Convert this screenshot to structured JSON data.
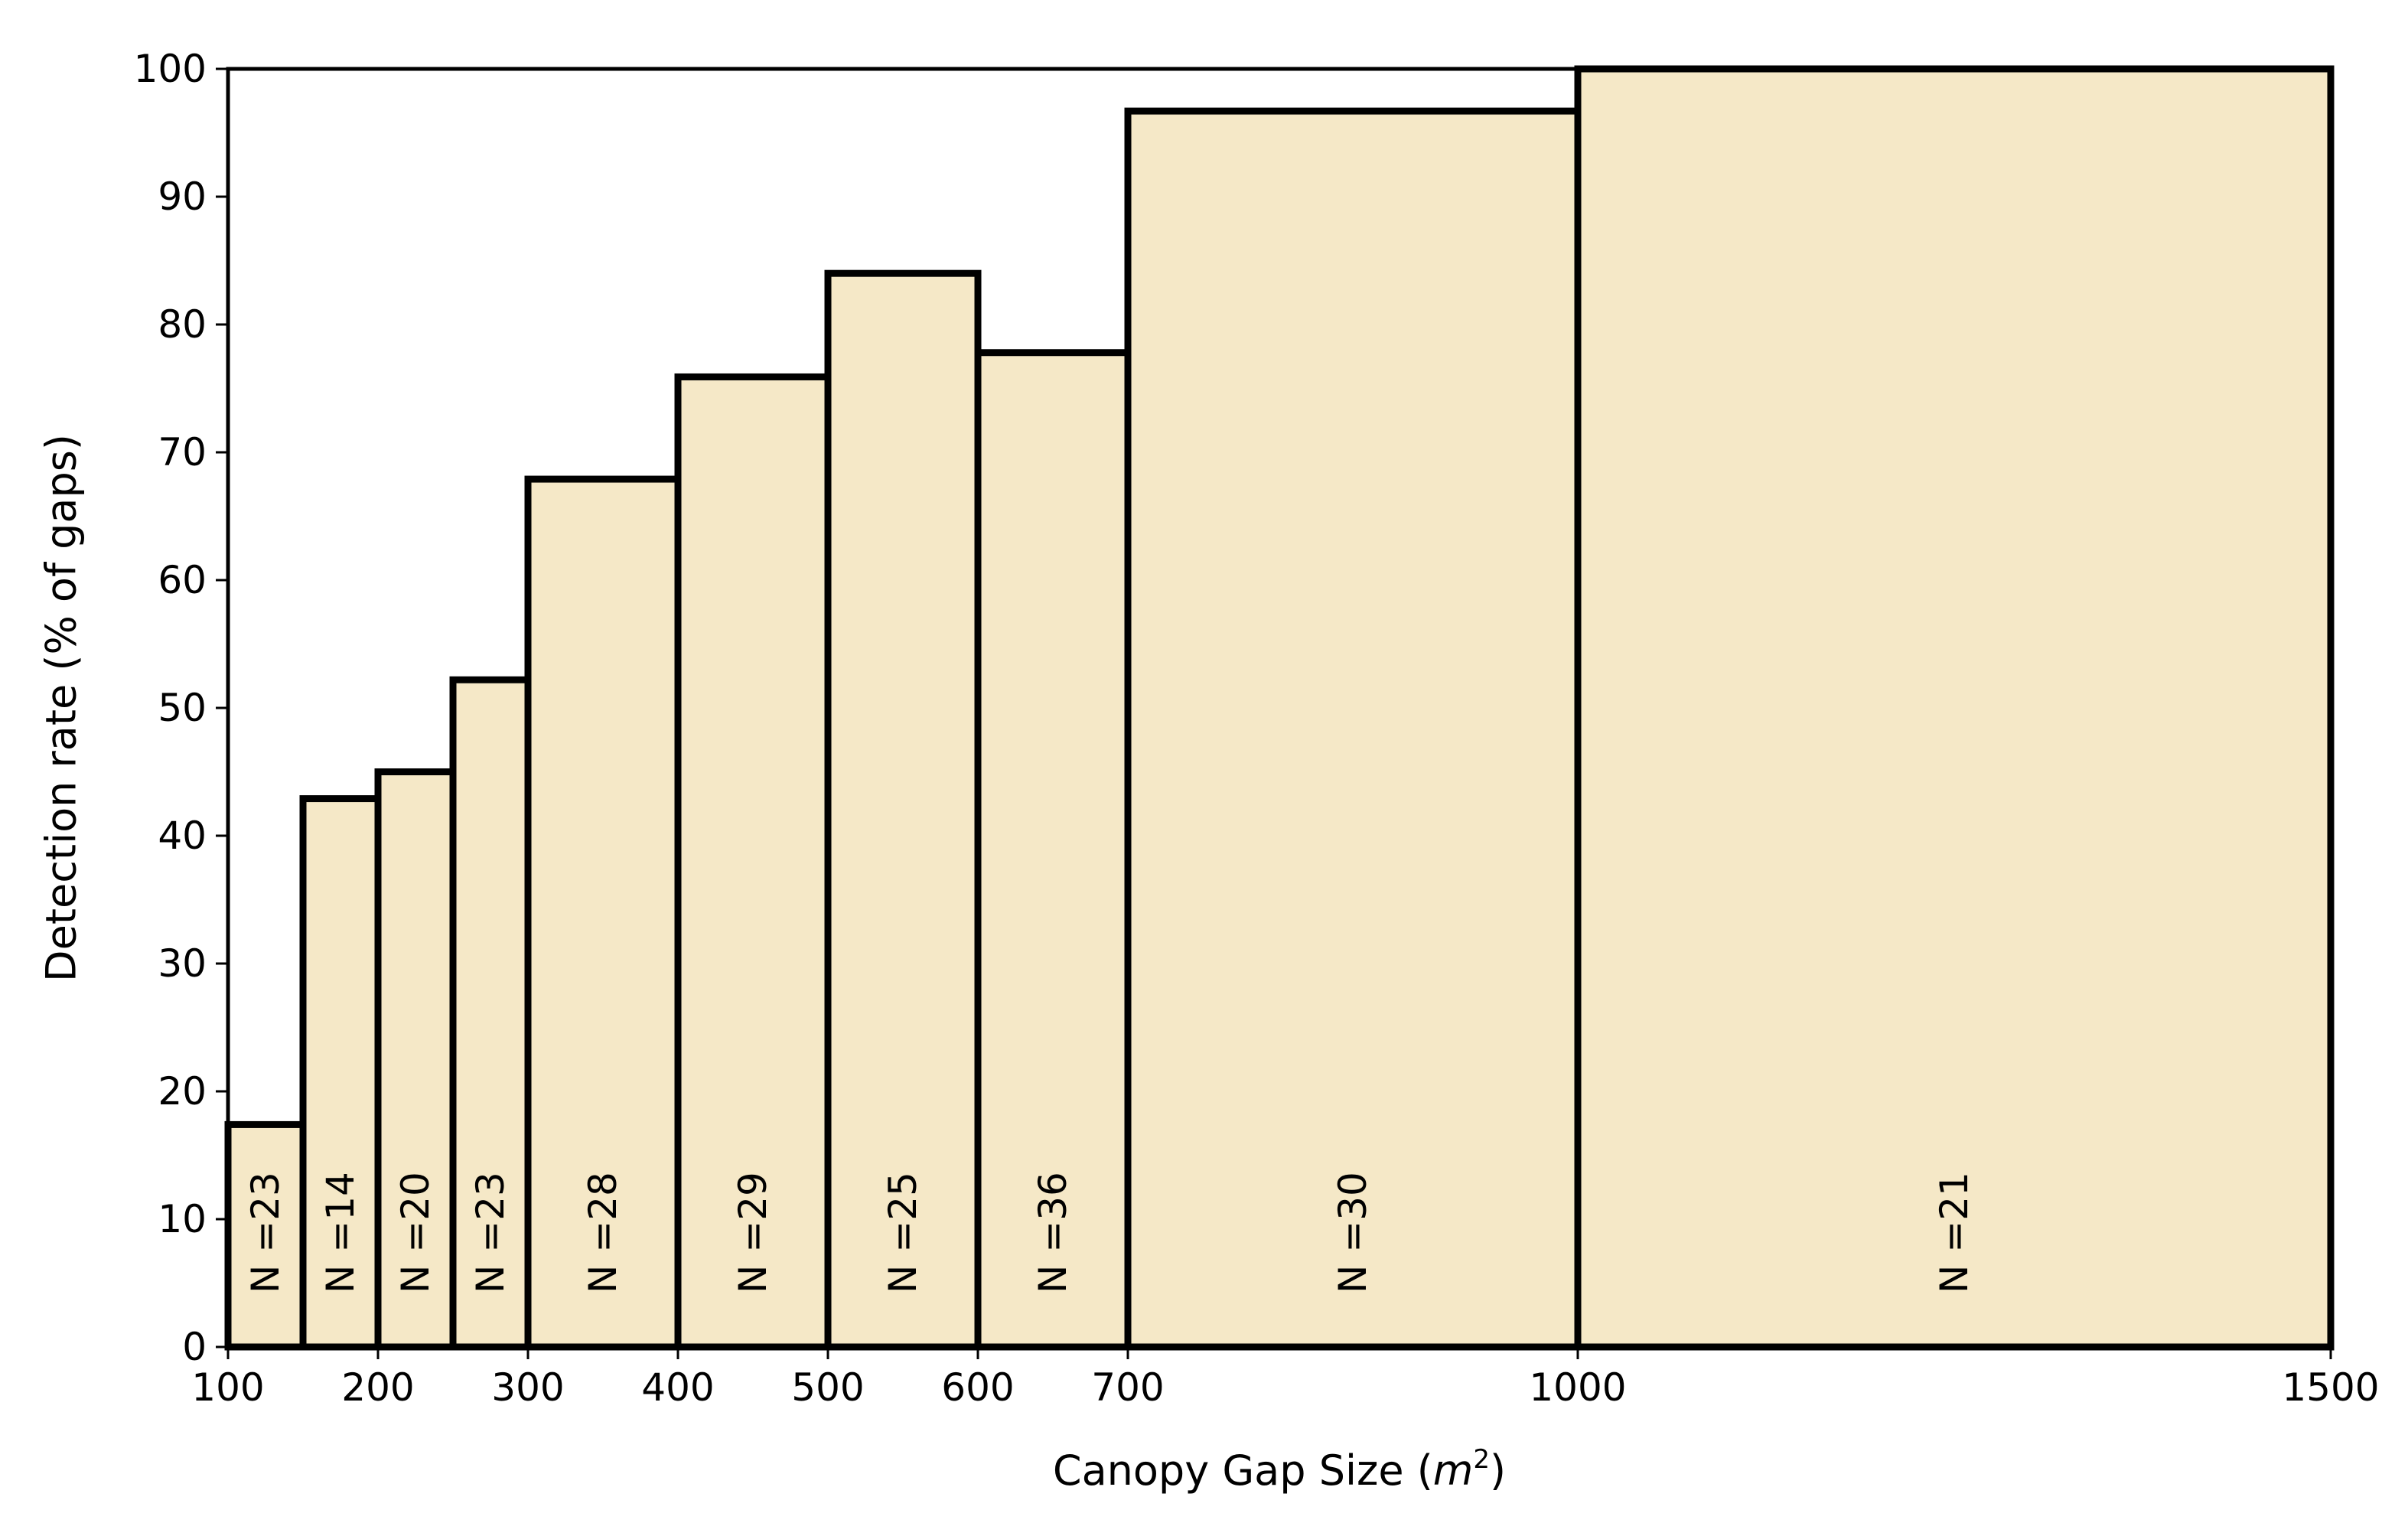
{
  "chart_data": {
    "type": "bar",
    "xlabel": "Canopy Gap Size (",
    "xlabel_unit": "m",
    "xlabel_sup": "2",
    "xlabel_close": ")",
    "ylabel": "Detection rate (% of gaps)",
    "ylim": [
      0,
      100
    ],
    "xlim": [
      100,
      1500
    ],
    "x_scale": "piecewise (bin edges equally spaced in display, last two bins wider)",
    "bin_edges": [
      100,
      150,
      200,
      250,
      300,
      400,
      500,
      600,
      700,
      1000,
      1500
    ],
    "values": [
      17.4,
      42.9,
      45.0,
      52.2,
      67.9,
      75.9,
      84.0,
      77.8,
      96.7,
      100.0
    ],
    "n_labels": [
      "N =23",
      "N =14",
      "N =20",
      "N =23",
      "N =28",
      "N =29",
      "N =25",
      "N =36",
      "N =30",
      "N =21"
    ],
    "x_ticks": [
      100,
      200,
      300,
      400,
      500,
      600,
      700,
      1000,
      1500
    ],
    "x_tick_labels": [
      "100",
      "200",
      "300",
      "400",
      "500",
      "600",
      "700",
      "1000",
      "1500"
    ],
    "y_ticks": [
      0,
      10,
      20,
      30,
      40,
      50,
      60,
      70,
      80,
      90,
      100
    ],
    "y_tick_labels": [
      "0",
      "10",
      "20",
      "30",
      "40",
      "50",
      "60",
      "70",
      "80",
      "90",
      "100"
    ],
    "bar_fill": "#f5e8c7",
    "bar_edge": "#000000",
    "grid": false,
    "legend": "none"
  }
}
